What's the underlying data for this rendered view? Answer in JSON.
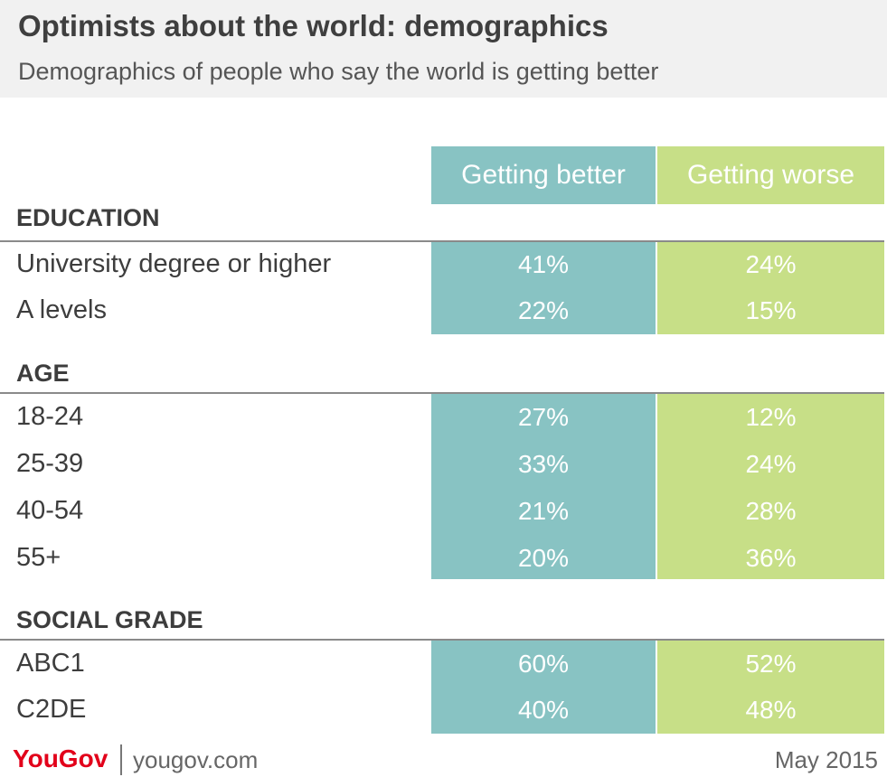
{
  "title": "Optimists about the world: demographics",
  "subtitle": "Demographics of people who say the world is getting better",
  "colors": {
    "better": "#88c3c3",
    "worse": "#c7df87"
  },
  "chart_data": {
    "type": "table",
    "columns": [
      "Getting better",
      "Getting worse"
    ],
    "sections": [
      {
        "name": "EDUCATION",
        "rows": [
          {
            "label": "University degree or higher",
            "better": "41%",
            "worse": "24%"
          },
          {
            "label": "A levels",
            "better": "22%",
            "worse": "15%"
          }
        ]
      },
      {
        "name": "AGE",
        "rows": [
          {
            "label": "18-24",
            "better": "27%",
            "worse": "12%"
          },
          {
            "label": "25-39",
            "better": "33%",
            "worse": "24%"
          },
          {
            "label": "40-54",
            "better": "21%",
            "worse": "28%"
          },
          {
            "label": "55+",
            "better": "20%",
            "worse": "36%"
          }
        ]
      },
      {
        "name": "SOCIAL GRADE",
        "rows": [
          {
            "label": "ABC1",
            "better": "60%",
            "worse": "52%"
          },
          {
            "label": "C2DE",
            "better": "40%",
            "worse": "48%"
          }
        ]
      }
    ]
  },
  "footer": {
    "brand": "YouGov",
    "url": "yougov.com",
    "date": "May 2015"
  }
}
